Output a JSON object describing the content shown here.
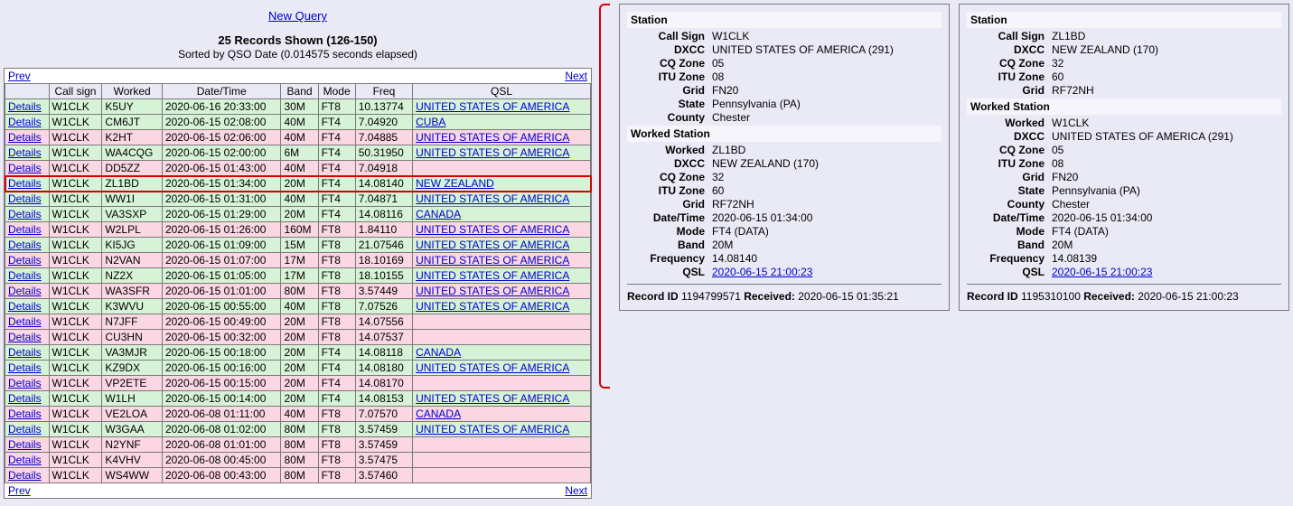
{
  "header": {
    "new_query": "New Query",
    "records_shown": "25 Records Shown (126-150)",
    "sorted_by": "Sorted by QSO Date (0.014575 seconds elapsed)",
    "prev": "Prev",
    "next": "Next"
  },
  "columns": [
    "",
    "Call sign",
    "Worked",
    "Date/Time",
    "Band",
    "Mode",
    "Freq",
    "QSL"
  ],
  "details_label": "Details",
  "rows": [
    {
      "cls": "green",
      "cs": "W1CLK",
      "wk": "K5UY",
      "dt": "2020-06-16 20:33:00",
      "band": "30M",
      "mode": "FT8",
      "freq": "10.13774",
      "qsl": "UNITED STATES OF AMERICA"
    },
    {
      "cls": "green",
      "cs": "W1CLK",
      "wk": "CM6JT",
      "dt": "2020-06-15 02:08:00",
      "band": "40M",
      "mode": "FT4",
      "freq": "7.04920",
      "qsl": "CUBA"
    },
    {
      "cls": "pink",
      "cs": "W1CLK",
      "wk": "K2HT",
      "dt": "2020-06-15 02:06:00",
      "band": "40M",
      "mode": "FT4",
      "freq": "7.04885",
      "qsl": "UNITED STATES OF AMERICA"
    },
    {
      "cls": "green",
      "cs": "W1CLK",
      "wk": "WA4CQG",
      "dt": "2020-06-15 02:00:00",
      "band": "6M",
      "mode": "FT4",
      "freq": "50.31950",
      "qsl": "UNITED STATES OF AMERICA"
    },
    {
      "cls": "pink",
      "cs": "W1CLK",
      "wk": "DD5ZZ",
      "dt": "2020-06-15 01:43:00",
      "band": "40M",
      "mode": "FT4",
      "freq": "7.04918",
      "qsl": ""
    },
    {
      "cls": "highlight",
      "cs": "W1CLK",
      "wk": "ZL1BD",
      "dt": "2020-06-15 01:34:00",
      "band": "20M",
      "mode": "FT4",
      "freq": "14.08140",
      "qsl": "NEW ZEALAND"
    },
    {
      "cls": "green",
      "cs": "W1CLK",
      "wk": "WW1I",
      "dt": "2020-06-15 01:31:00",
      "band": "40M",
      "mode": "FT4",
      "freq": "7.04871",
      "qsl": "UNITED STATES OF AMERICA"
    },
    {
      "cls": "green",
      "cs": "W1CLK",
      "wk": "VA3SXP",
      "dt": "2020-06-15 01:29:00",
      "band": "20M",
      "mode": "FT4",
      "freq": "14.08116",
      "qsl": "CANADA"
    },
    {
      "cls": "pink",
      "cs": "W1CLK",
      "wk": "W2LPL",
      "dt": "2020-06-15 01:26:00",
      "band": "160M",
      "mode": "FT8",
      "freq": "1.84110",
      "qsl": "UNITED STATES OF AMERICA"
    },
    {
      "cls": "green",
      "cs": "W1CLK",
      "wk": "KI5JG",
      "dt": "2020-06-15 01:09:00",
      "band": "15M",
      "mode": "FT8",
      "freq": "21.07546",
      "qsl": "UNITED STATES OF AMERICA"
    },
    {
      "cls": "pink",
      "cs": "W1CLK",
      "wk": "N2VAN",
      "dt": "2020-06-15 01:07:00",
      "band": "17M",
      "mode": "FT8",
      "freq": "18.10169",
      "qsl": "UNITED STATES OF AMERICA"
    },
    {
      "cls": "green",
      "cs": "W1CLK",
      "wk": "NZ2X",
      "dt": "2020-06-15 01:05:00",
      "band": "17M",
      "mode": "FT8",
      "freq": "18.10155",
      "qsl": "UNITED STATES OF AMERICA"
    },
    {
      "cls": "pink",
      "cs": "W1CLK",
      "wk": "WA3SFR",
      "dt": "2020-06-15 01:01:00",
      "band": "80M",
      "mode": "FT8",
      "freq": "3.57449",
      "qsl": "UNITED STATES OF AMERICA"
    },
    {
      "cls": "green",
      "cs": "W1CLK",
      "wk": "K3WVU",
      "dt": "2020-06-15 00:55:00",
      "band": "40M",
      "mode": "FT8",
      "freq": "7.07526",
      "qsl": "UNITED STATES OF AMERICA"
    },
    {
      "cls": "pink",
      "cs": "W1CLK",
      "wk": "N7JFF",
      "dt": "2020-06-15 00:49:00",
      "band": "20M",
      "mode": "FT8",
      "freq": "14.07556",
      "qsl": ""
    },
    {
      "cls": "pink",
      "cs": "W1CLK",
      "wk": "CU3HN",
      "dt": "2020-06-15 00:32:00",
      "band": "20M",
      "mode": "FT8",
      "freq": "14.07537",
      "qsl": ""
    },
    {
      "cls": "green",
      "cs": "W1CLK",
      "wk": "VA3MJR",
      "dt": "2020-06-15 00:18:00",
      "band": "20M",
      "mode": "FT4",
      "freq": "14.08118",
      "qsl": "CANADA"
    },
    {
      "cls": "green",
      "cs": "W1CLK",
      "wk": "KZ9DX",
      "dt": "2020-06-15 00:16:00",
      "band": "20M",
      "mode": "FT4",
      "freq": "14.08180",
      "qsl": "UNITED STATES OF AMERICA"
    },
    {
      "cls": "pink",
      "cs": "W1CLK",
      "wk": "VP2ETE",
      "dt": "2020-06-15 00:15:00",
      "band": "20M",
      "mode": "FT4",
      "freq": "14.08170",
      "qsl": ""
    },
    {
      "cls": "green",
      "cs": "W1CLK",
      "wk": "W1LH",
      "dt": "2020-06-15 00:14:00",
      "band": "20M",
      "mode": "FT4",
      "freq": "14.08153",
      "qsl": "UNITED STATES OF AMERICA"
    },
    {
      "cls": "pink",
      "cs": "W1CLK",
      "wk": "VE2LOA",
      "dt": "2020-06-08 01:11:00",
      "band": "40M",
      "mode": "FT8",
      "freq": "7.07570",
      "qsl": "CANADA"
    },
    {
      "cls": "green",
      "cs": "W1CLK",
      "wk": "W3GAA",
      "dt": "2020-06-08 01:02:00",
      "band": "80M",
      "mode": "FT8",
      "freq": "3.57459",
      "qsl": "UNITED STATES OF AMERICA"
    },
    {
      "cls": "pink",
      "cs": "W1CLK",
      "wk": "N2YNF",
      "dt": "2020-06-08 01:01:00",
      "band": "80M",
      "mode": "FT8",
      "freq": "3.57459",
      "qsl": ""
    },
    {
      "cls": "pink",
      "cs": "W1CLK",
      "wk": "K4VHV",
      "dt": "2020-06-08 00:45:00",
      "band": "80M",
      "mode": "FT8",
      "freq": "3.57475",
      "qsl": ""
    },
    {
      "cls": "pink",
      "cs": "W1CLK",
      "wk": "WS4WW",
      "dt": "2020-06-08 00:43:00",
      "band": "80M",
      "mode": "FT8",
      "freq": "3.57460",
      "qsl": ""
    }
  ],
  "panel1": {
    "station_hdr": "Station",
    "station": [
      [
        "Call Sign",
        "W1CLK"
      ],
      [
        "DXCC",
        "UNITED STATES OF AMERICA (291)"
      ],
      [
        "CQ Zone",
        "05"
      ],
      [
        "ITU Zone",
        "08"
      ],
      [
        "Grid",
        "FN20"
      ],
      [
        "State",
        "Pennsylvania (PA)"
      ],
      [
        "County",
        "Chester"
      ]
    ],
    "worked_hdr": "Worked Station",
    "worked": [
      [
        "Worked",
        "ZL1BD"
      ],
      [
        "DXCC",
        "NEW ZEALAND (170)"
      ],
      [
        "CQ Zone",
        "32"
      ],
      [
        "ITU Zone",
        "60"
      ],
      [
        "Grid",
        "RF72NH"
      ],
      [
        "Date/Time",
        "2020-06-15 01:34:00"
      ],
      [
        "Mode",
        "FT4 (DATA)"
      ],
      [
        "Band",
        "20M"
      ],
      [
        "Frequency",
        "14.08140"
      ]
    ],
    "qsl_label": "QSL",
    "qsl_link": "2020-06-15 21:00:23",
    "record_id_label": "Record ID",
    "record_id": "1194799571",
    "received_label": "Received:",
    "received": "2020-06-15 01:35:21"
  },
  "panel2": {
    "station_hdr": "Station",
    "station": [
      [
        "Call Sign",
        "ZL1BD"
      ],
      [
        "DXCC",
        "NEW ZEALAND (170)"
      ],
      [
        "CQ Zone",
        "32"
      ],
      [
        "ITU Zone",
        "60"
      ],
      [
        "Grid",
        "RF72NH"
      ]
    ],
    "worked_hdr": "Worked Station",
    "worked": [
      [
        "Worked",
        "W1CLK"
      ],
      [
        "DXCC",
        "UNITED STATES OF AMERICA (291)"
      ],
      [
        "CQ Zone",
        "05"
      ],
      [
        "ITU Zone",
        "08"
      ],
      [
        "Grid",
        "FN20"
      ],
      [
        "State",
        "Pennsylvania (PA)"
      ],
      [
        "County",
        "Chester"
      ],
      [
        "Date/Time",
        "2020-06-15 01:34:00"
      ],
      [
        "Mode",
        "FT4 (DATA)"
      ],
      [
        "Band",
        "20M"
      ],
      [
        "Frequency",
        "14.08139"
      ]
    ],
    "qsl_label": "QSL",
    "qsl_link": "2020-06-15 21:00:23",
    "record_id_label": "Record ID",
    "record_id": "1195310100",
    "received_label": "Received:",
    "received": "2020-06-15 21:00:23"
  }
}
